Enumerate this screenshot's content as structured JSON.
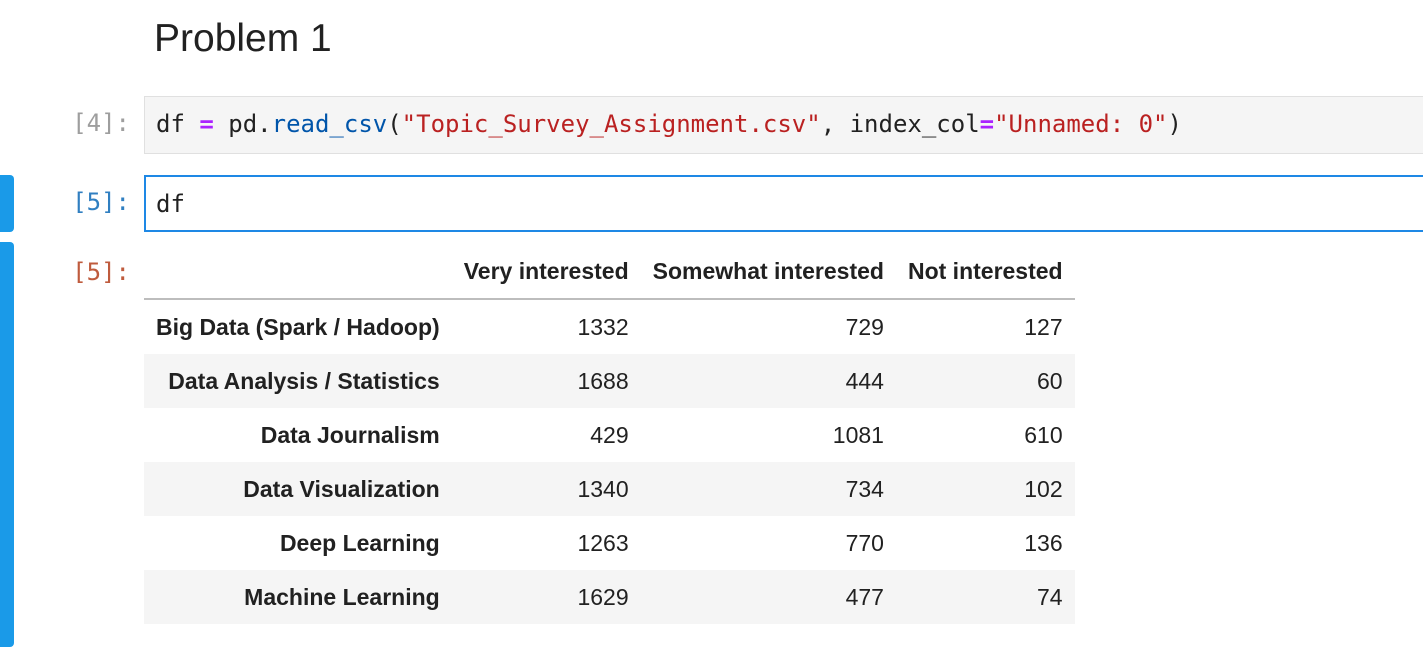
{
  "markdown": {
    "heading": "Problem 1"
  },
  "cells": {
    "cell1": {
      "prompt": "[4]:",
      "code": {
        "var": "df",
        "assign": "=",
        "module": "pd",
        "dot": ".",
        "func": "read_csv",
        "open": "(",
        "path": "\"Topic_Survey_Assignment.csv\"",
        "comma": ", ",
        "kwarg": "index_col",
        "kwassign": "=",
        "kwvalue": "\"Unnamed: 0\"",
        "close": ")"
      }
    },
    "cell2": {
      "prompt": "[5]:",
      "code": "df",
      "output_prompt": "[5]:"
    }
  },
  "dataframe": {
    "columns": [
      "Very interested",
      "Somewhat interested",
      "Not interested"
    ],
    "rows": [
      {
        "index": "Big Data (Spark / Hadoop)",
        "values": [
          "1332",
          "729",
          "127"
        ]
      },
      {
        "index": "Data Analysis / Statistics",
        "values": [
          "1688",
          "444",
          "60"
        ]
      },
      {
        "index": "Data Journalism",
        "values": [
          "429",
          "1081",
          "610"
        ]
      },
      {
        "index": "Data Visualization",
        "values": [
          "1340",
          "734",
          "102"
        ]
      },
      {
        "index": "Deep Learning",
        "values": [
          "1263",
          "770",
          "136"
        ]
      },
      {
        "index": "Machine Learning",
        "values": [
          "1629",
          "477",
          "74"
        ]
      }
    ]
  },
  "colors": {
    "active_cell_border": "#1e88e5",
    "collapser": "#1a9ae8",
    "in_prompt_active": "#307fc1",
    "out_prompt": "#bf5b3d",
    "string": "#ba2121",
    "function": "#0055aa",
    "operator": "#aa22ff"
  }
}
